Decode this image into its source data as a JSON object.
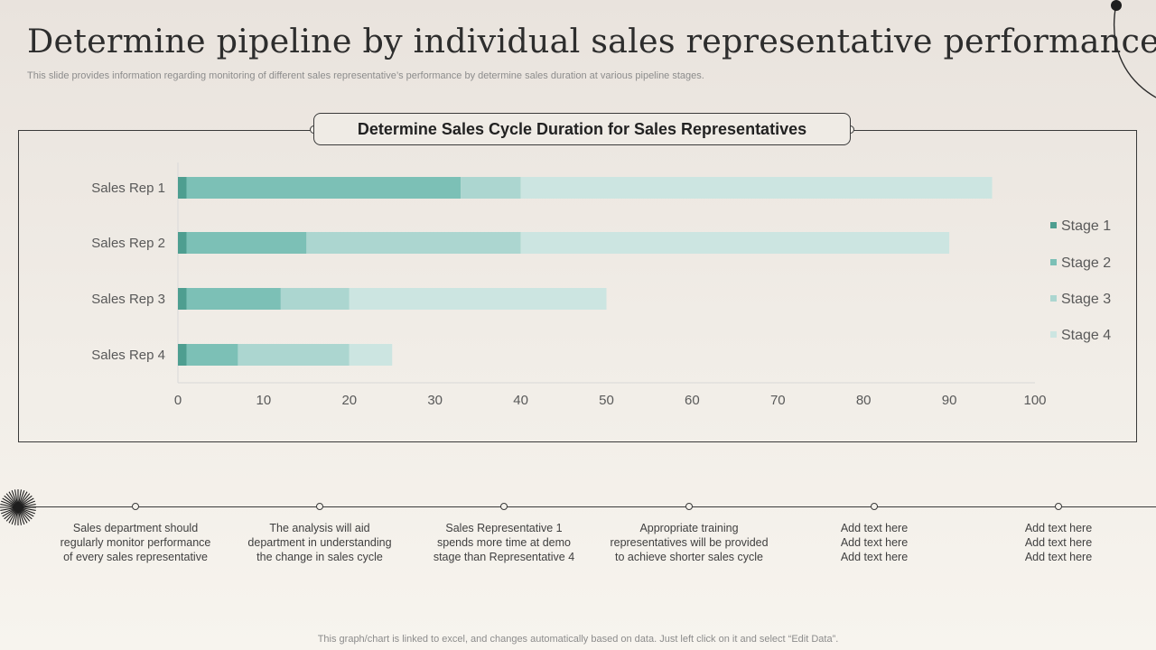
{
  "slide": {
    "title": "Determine pipeline by individual sales representative performance",
    "subtitle": "This slide provides information regarding monitoring of different sales representative’s performance by determine sales duration at various pipeline stages.",
    "footer": "This graph/chart is linked to excel,  and changes automatically based on data. Just left click on it and select “Edit Data”."
  },
  "chart_data": {
    "type": "bar",
    "orientation": "horizontal",
    "stacked": true,
    "title": "Determine Sales Cycle Duration for Sales Representatives",
    "categories": [
      "Sales Rep 1",
      "Sales Rep 2",
      "Sales Rep 3",
      "Sales Rep 4"
    ],
    "series": [
      {
        "name": "Stage 1",
        "values": [
          1,
          1,
          1,
          1
        ],
        "color": "#4e9e90"
      },
      {
        "name": "Stage 2",
        "values": [
          32,
          14,
          11,
          6
        ],
        "color": "#7cc0b6"
      },
      {
        "name": "Stage 3",
        "values": [
          7,
          25,
          8,
          13
        ],
        "color": "#acd6d0"
      },
      {
        "name": "Stage 4",
        "values": [
          55,
          50,
          30,
          5
        ],
        "color": "#cce5e1"
      }
    ],
    "xlim": [
      0,
      100
    ],
    "xticks": [
      0,
      10,
      20,
      30,
      40,
      50,
      60,
      70,
      80,
      90,
      100
    ],
    "xlabel": "",
    "ylabel": "",
    "legend_position": "right"
  },
  "notes": [
    {
      "lines": [
        "Sales department should",
        "regularly  monitor performance",
        "of every  sales representative"
      ]
    },
    {
      "lines": [
        "The analysis will aid",
        "department  in understanding",
        "the change in sales cycle"
      ]
    },
    {
      "lines": [
        "Sales Representative  1",
        "spends more time at demo",
        "stage than Representative  4"
      ]
    },
    {
      "lines": [
        "Appropriate training",
        "representatives  will be provided",
        "to achieve shorter sales cycle"
      ]
    },
    {
      "lines": [
        "Add text here",
        "Add text here",
        "Add text here"
      ]
    },
    {
      "lines": [
        "Add text here",
        "Add text here",
        "Add text here"
      ]
    }
  ]
}
